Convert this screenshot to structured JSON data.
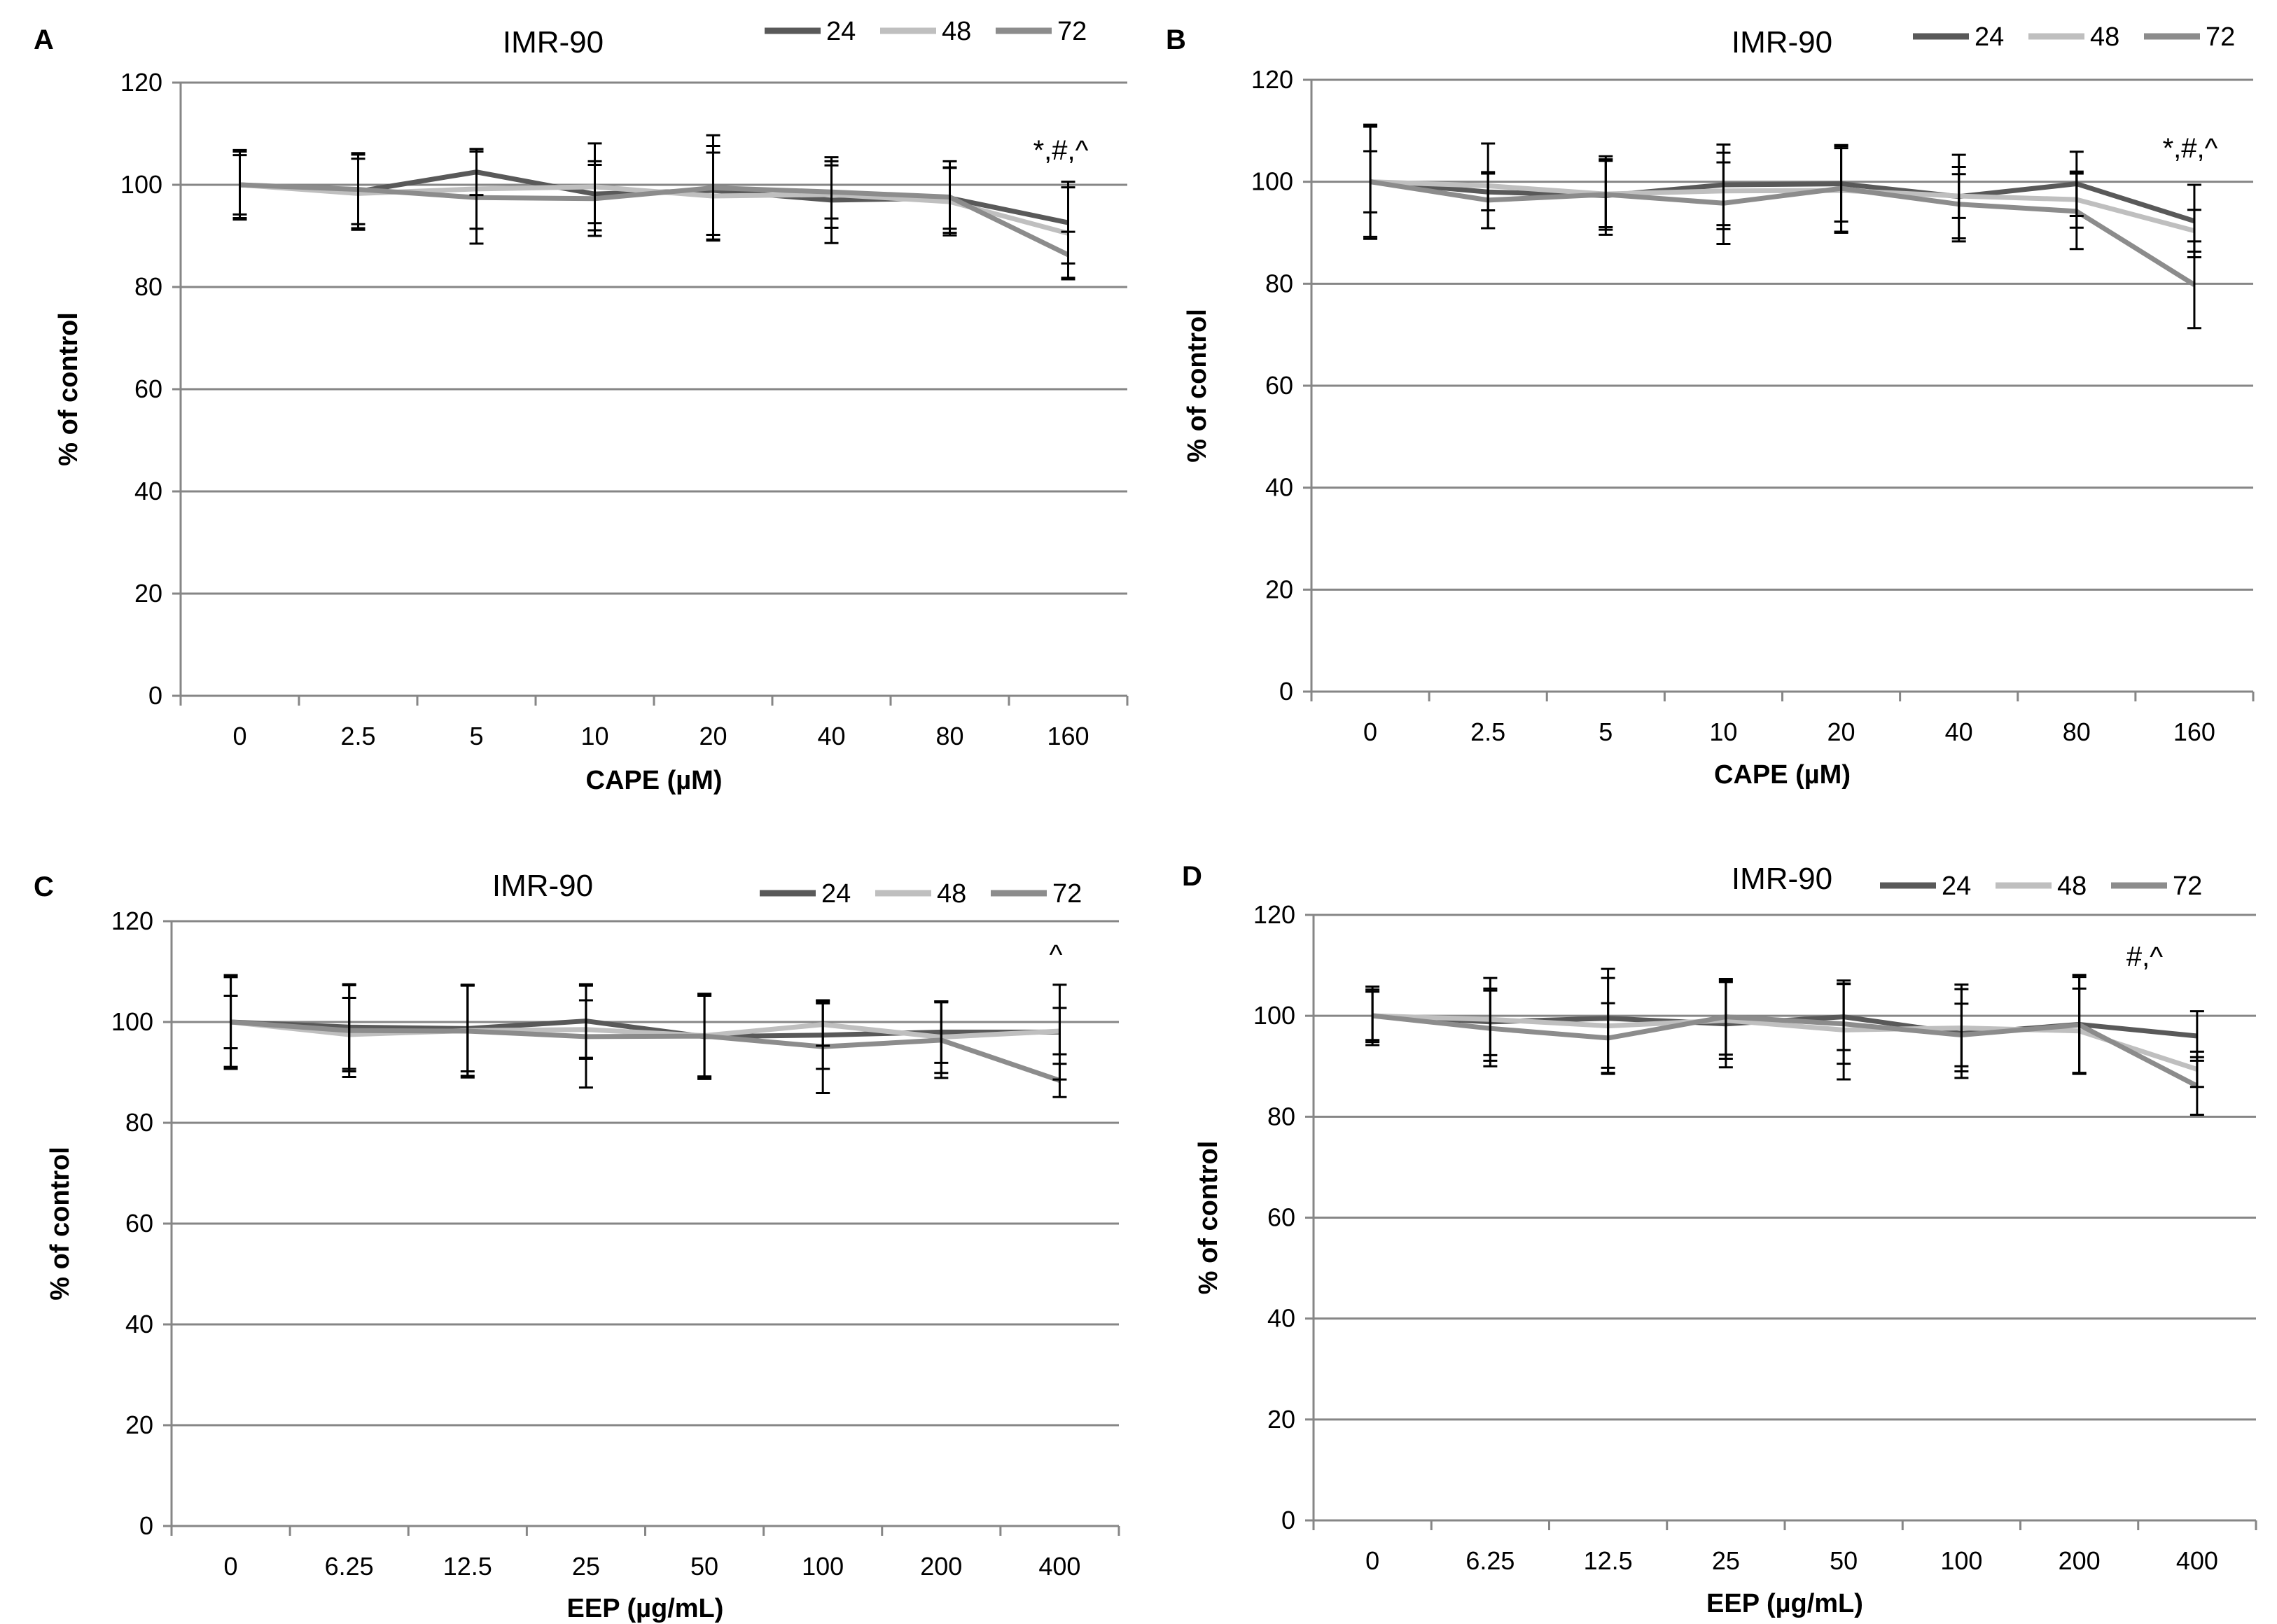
{
  "colors": {
    "s24": "#595959",
    "s48": "#bfbfbf",
    "s72": "#8c8c8c",
    "grid": "#868686",
    "axis": "#868686",
    "error": "#000000"
  },
  "chart_data": [
    {
      "panel": "A",
      "type": "line",
      "title": "IMR-90",
      "xlabel": "CAPE (µM)",
      "ylabel": "% of control",
      "ylim": [
        0,
        120
      ],
      "yticks": [
        "0",
        "20",
        "40",
        "60",
        "80",
        "100",
        "120"
      ],
      "categories": [
        "0",
        "2.5",
        "5",
        "10",
        "20",
        "40",
        "80",
        "160"
      ],
      "legend": [
        "24",
        "48",
        "72"
      ],
      "annotation": "*,#,^",
      "series": [
        {
          "name": "24",
          "values": [
            100,
            98.7,
            102.5,
            98.2,
            98.9,
            97,
            97.4,
            92.6
          ],
          "errors": [
            6.8,
            7.5,
            4.5,
            5.7,
            8.7,
            8.4,
            6,
            8
          ]
        },
        {
          "name": "48",
          "values": [
            100,
            98.3,
            99.2,
            99.6,
            97.8,
            98.1,
            96.7,
            90.5
          ],
          "errors": [
            6.5,
            6.8,
            7.8,
            8.5,
            8.5,
            6.5,
            6.6,
            9
          ]
        },
        {
          "name": "72",
          "values": [
            100,
            99.1,
            97.5,
            97.3,
            99.4,
            98.6,
            97.6,
            86.3
          ],
          "errors": [
            5.8,
            6.8,
            9,
            7.3,
            10.3,
            5.2,
            7,
            4.5
          ]
        }
      ]
    },
    {
      "panel": "B",
      "type": "line",
      "title": "IMR-90",
      "xlabel": "CAPE (µM)",
      "ylabel": "% of control",
      "ylim": [
        0,
        120
      ],
      "yticks": [
        "0",
        "20",
        "40",
        "60",
        "80",
        "100",
        "120"
      ],
      "categories": [
        "0",
        "2.5",
        "5",
        "10",
        "20",
        "40",
        "80",
        "160"
      ],
      "legend": [
        "24",
        "48",
        "72"
      ],
      "annotation": "*,#,^",
      "series": [
        {
          "name": "24",
          "values": [
            100,
            98,
            97.3,
            99.4,
            99.6,
            97.1,
            99.6,
            92.3
          ],
          "errors": [
            6,
            3.6,
            7.7,
            7.9,
            7.4,
            8.2,
            6.3,
            7.1
          ]
        },
        {
          "name": "48",
          "values": [
            100,
            99.2,
            97.6,
            98.2,
            98.3,
            97.2,
            96.5,
            90.4
          ],
          "errors": [
            10.8,
            8.3,
            6.5,
            7.5,
            8.3,
            4.3,
            5.5,
            4.1
          ]
        },
        {
          "name": "72",
          "values": [
            100,
            96.4,
            97.5,
            95.8,
            98.7,
            95.6,
            94.2,
            79.8
          ],
          "errors": [
            11.2,
            5.5,
            6.9,
            8,
            8.5,
            7.3,
            7.4,
            8.5
          ]
        }
      ]
    },
    {
      "panel": "C",
      "type": "line",
      "title": "IMR-90",
      "xlabel": "EEP (µg/mL)",
      "ylabel": "% of control",
      "ylim": [
        0,
        120
      ],
      "yticks": [
        "0",
        "20",
        "40",
        "60",
        "80",
        "100",
        "120"
      ],
      "categories": [
        "0",
        "6.25",
        "12.5",
        "25",
        "50",
        "100",
        "200",
        "400"
      ],
      "legend": [
        "24",
        "48",
        "72"
      ],
      "annotation": "^",
      "series": [
        {
          "name": "24",
          "values": [
            100,
            99,
            98.7,
            100.2,
            97.1,
            97.4,
            98,
            98
          ],
          "errors": [
            5.2,
            8.3,
            8.5,
            7.3,
            8.4,
            6.7,
            6.1,
            9.4
          ]
        },
        {
          "name": "48",
          "values": [
            100,
            97.5,
            98.3,
            98.5,
            97.3,
            99.5,
            97,
            98.2
          ],
          "errors": [
            9.3,
            7.3,
            9,
            5.8,
            8.3,
            4.2,
            7.1,
            4.6
          ]
        },
        {
          "name": "72",
          "values": [
            100,
            98.3,
            98.2,
            97.1,
            97.2,
            95.1,
            96.4,
            88.4
          ],
          "errors": [
            8.9,
            9.2,
            9.2,
            10.1,
            8,
            9.2,
            7.5,
            3.3
          ]
        }
      ]
    },
    {
      "panel": "D",
      "type": "line",
      "title": "IMR-90",
      "xlabel": "EEP (µg/mL)",
      "ylabel": "% of control",
      "ylim": [
        0,
        120
      ],
      "yticks": [
        "0",
        "20",
        "40",
        "60",
        "80",
        "100",
        "120"
      ],
      "categories": [
        "0",
        "6.25",
        "12.5",
        "25",
        "50",
        "100",
        "200",
        "400"
      ],
      "legend": [
        "24",
        "48",
        "72"
      ],
      "annotation": "#,^",
      "series": [
        {
          "name": "24",
          "values": [
            100,
            98.8,
            99.5,
            98.4,
            99.8,
            96.5,
            98.3,
            96
          ],
          "errors": [
            5.2,
            6.6,
            9.8,
            8.6,
            6.6,
            8.8,
            9.8,
            4.9
          ]
        },
        {
          "name": "48",
          "values": [
            100,
            99.3,
            98,
            99.1,
            97.2,
            97.6,
            97,
            89.4
          ],
          "errors": [
            5.8,
            8.2,
            9.5,
            7.6,
            9.8,
            8.6,
            8.4,
            3.5
          ]
        },
        {
          "name": "72",
          "values": [
            100,
            97.5,
            95.6,
            99.8,
            98.4,
            96.2,
            98.2,
            86.1
          ],
          "errors": [
            4.8,
            7.5,
            6.9,
            7.5,
            7.9,
            6.2,
            9.5,
            5.7
          ]
        }
      ]
    }
  ]
}
